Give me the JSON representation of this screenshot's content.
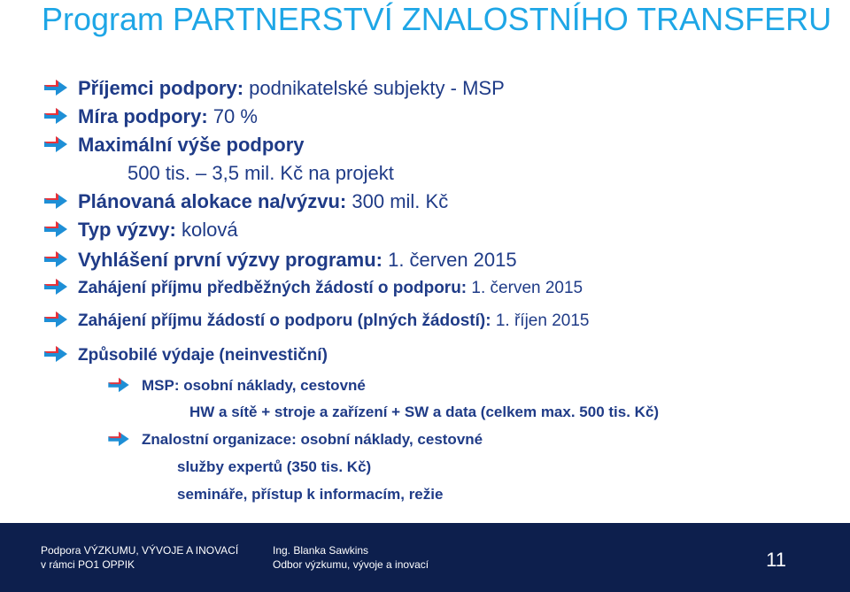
{
  "title": "Program PARTNERSTVÍ ZNALOSTNÍHO TRANSFERU",
  "bullets": [
    {
      "label": "Příjemci podpory:",
      "value": " podnikatelské subjekty - MSP"
    },
    {
      "label": "Míra podpory:",
      "value": " 70 %"
    },
    {
      "label": "Maximální výše podpory",
      "value": ""
    },
    {
      "label": "Plánovaná alokace na/výzvu:",
      "value": " 300 mil. Kč"
    },
    {
      "label": "Typ výzvy:",
      "value": " kolová"
    },
    {
      "label": "Vyhlášení první výzvy programu:",
      "value": " 1. červen 2015"
    },
    {
      "label": "Zahájení příjmu předběžných žádostí o podporu:",
      "value": " 1. červen 2015"
    },
    {
      "label": "Zahájení příjmu žádostí o podporu (plných žádostí):",
      "value": " 1. říjen 2015"
    },
    {
      "label": "Způsobilé výdaje (neinvestiční)",
      "value": ""
    }
  ],
  "support_amount": "500 tis. – 3,5 mil. Kč na projekt",
  "sub_items": [
    {
      "text": "MSP: osobní náklady, cestovné",
      "continuation": "HW a sítě + stroje a zařízení + SW a data (celkem max. 500 tis. Kč)"
    },
    {
      "text": "Znalostní organizace: osobní náklady, cestovné",
      "continuation": "služby expertů (350 tis. Kč)",
      "continuation2": "semináře, přístup k informacím, režie"
    }
  ],
  "footer": {
    "left1": "Podpora VÝZKUMU, VÝVOJE A INOVACÍ",
    "left2": "v rámci PO1 OPPIK",
    "mid1": "Ing. Blanka Sawkins",
    "mid2": "Odbor výzkumu, vývoje a inovací",
    "page": "11"
  },
  "colors": {
    "title": "#1ea6e6",
    "text": "#1f3b87",
    "arrow_red": "#e8333b",
    "arrow_blue": "#1e8fd6",
    "footer_bg": "#0d1f4d"
  },
  "icons": {
    "bullet": "arrow-right-icon"
  }
}
